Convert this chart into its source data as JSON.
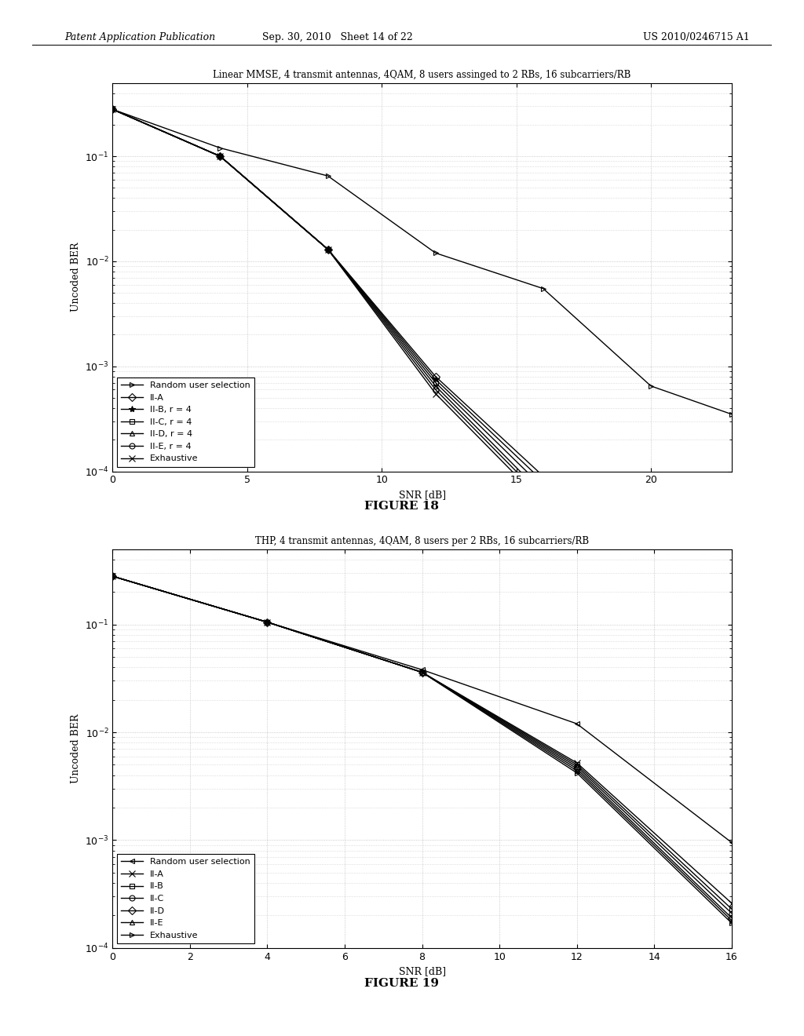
{
  "fig1": {
    "title": "Linear MMSE, 4 transmit antennas, 4QAM, 8 users assinged to 2 RBs, 16 subcarriers/RB",
    "xlabel": "SNR [dB]",
    "ylabel": "Uncoded BER",
    "figure_label": "FIGURE 18",
    "xlim": [
      0,
      23
    ],
    "ylim": [
      0.0001,
      0.5
    ],
    "xticks": [
      0,
      5,
      10,
      15,
      20
    ],
    "series": [
      {
        "label": "Random user selection",
        "marker": ">",
        "markersize": 5,
        "x": [
          0,
          4,
          8,
          12,
          16,
          20,
          23
        ],
        "y": [
          0.28,
          0.12,
          0.065,
          0.012,
          0.0055,
          0.00065,
          0.00035
        ]
      },
      {
        "label": "II-A",
        "marker": "D",
        "markersize": 5,
        "x": [
          0,
          4,
          8,
          12,
          16,
          20,
          23
        ],
        "y": [
          0.28,
          0.1,
          0.013,
          0.0008,
          9e-05,
          1.2e-05,
          9e-06
        ]
      },
      {
        "label": "II-B, r = 4",
        "marker": "*",
        "markersize": 6,
        "x": [
          0,
          4,
          8,
          12,
          16,
          20,
          23
        ],
        "y": [
          0.28,
          0.1,
          0.013,
          0.00075,
          8e-05,
          1.1e-05,
          8.2e-06
        ]
      },
      {
        "label": "II-C, r = 4",
        "marker": "s",
        "markersize": 5,
        "x": [
          0,
          4,
          8,
          12,
          16,
          20,
          23
        ],
        "y": [
          0.28,
          0.1,
          0.013,
          0.0007,
          7e-05,
          1e-05,
          7.5e-06
        ]
      },
      {
        "label": "II-D, r = 4",
        "marker": "^",
        "markersize": 5,
        "x": [
          0,
          4,
          8,
          12,
          16,
          20,
          23
        ],
        "y": [
          0.28,
          0.1,
          0.013,
          0.00065,
          6e-05,
          9e-06,
          6.8e-06
        ]
      },
      {
        "label": "II-E, r = 4",
        "marker": "o",
        "markersize": 5,
        "x": [
          0,
          4,
          8,
          12,
          16,
          20,
          23
        ],
        "y": [
          0.28,
          0.1,
          0.013,
          0.0006,
          5.5e-05,
          8.2e-06,
          6.2e-06
        ]
      },
      {
        "label": "Exhaustive",
        "marker": "x",
        "markersize": 6,
        "x": [
          0,
          4,
          8,
          12,
          16,
          20,
          23
        ],
        "y": [
          0.28,
          0.1,
          0.013,
          0.00055,
          5e-05,
          7.5e-06,
          5.8e-06
        ]
      }
    ]
  },
  "fig2": {
    "title": "THP, 4 transmit antennas, 4QAM, 8 users per 2 RBs, 16 subcarriers/RB",
    "xlabel": "SNR [dB]",
    "ylabel": "Uncoded BER",
    "figure_label": "FIGURE 19",
    "xlim": [
      0,
      16
    ],
    "ylim": [
      0.0001,
      0.5
    ],
    "xticks": [
      0,
      2,
      4,
      6,
      8,
      10,
      12,
      14,
      16
    ],
    "series": [
      {
        "label": "Random user selection",
        "marker": "<",
        "markersize": 5,
        "x": [
          0,
          4,
          8,
          12,
          16
        ],
        "y": [
          0.28,
          0.105,
          0.038,
          0.012,
          0.00095
        ]
      },
      {
        "label": "II-A",
        "marker": "x",
        "markersize": 6,
        "x": [
          0,
          4,
          8,
          12,
          16
        ],
        "y": [
          0.28,
          0.105,
          0.036,
          0.0052,
          0.00026
        ]
      },
      {
        "label": "II-B",
        "marker": "s",
        "markersize": 5,
        "x": [
          0,
          4,
          8,
          12,
          16
        ],
        "y": [
          0.28,
          0.105,
          0.036,
          0.005,
          0.00023
        ]
      },
      {
        "label": "II-C",
        "marker": "o",
        "markersize": 5,
        "x": [
          0,
          4,
          8,
          12,
          16
        ],
        "y": [
          0.28,
          0.105,
          0.036,
          0.0048,
          0.00021
        ]
      },
      {
        "label": "II-D",
        "marker": "D",
        "markersize": 5,
        "x": [
          0,
          4,
          8,
          12,
          16
        ],
        "y": [
          0.28,
          0.105,
          0.036,
          0.0046,
          0.00019
        ]
      },
      {
        "label": "II-E",
        "marker": "^",
        "markersize": 5,
        "x": [
          0,
          4,
          8,
          12,
          16
        ],
        "y": [
          0.28,
          0.105,
          0.036,
          0.0044,
          0.00018
        ]
      },
      {
        "label": "Exhaustive",
        "marker": ">",
        "markersize": 5,
        "x": [
          0,
          4,
          8,
          12,
          16
        ],
        "y": [
          0.28,
          0.105,
          0.036,
          0.0042,
          0.00017
        ]
      }
    ]
  },
  "header_left": "Patent Application Publication",
  "header_mid": "Sep. 30, 2010   Sheet 14 of 22",
  "header_right": "US 2010/0246715 A1",
  "background_color": "#ffffff",
  "line_color": "#000000",
  "grid_color": "#bbbbbb",
  "linewidth": 1.0,
  "title_fontsize": 8.5,
  "label_fontsize": 9,
  "tick_fontsize": 9,
  "legend_fontsize": 8,
  "figure_label_fontsize": 11
}
